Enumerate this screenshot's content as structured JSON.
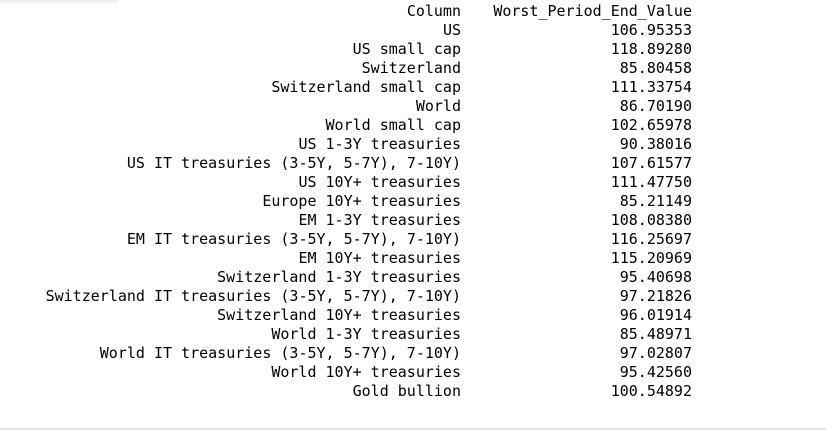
{
  "table": {
    "headers": {
      "column": "Column",
      "value": "Worst_Period_End_Value"
    },
    "rows": [
      {
        "column": "US",
        "value": "106.95353"
      },
      {
        "column": "US small cap",
        "value": "118.89280"
      },
      {
        "column": "Switzerland",
        "value": "85.80458"
      },
      {
        "column": "Switzerland small cap",
        "value": "111.33754"
      },
      {
        "column": "World",
        "value": "86.70190"
      },
      {
        "column": "World small cap",
        "value": "102.65978"
      },
      {
        "column": "US 1-3Y treasuries",
        "value": "90.38016"
      },
      {
        "column": "US IT treasuries (3-5Y, 5-7Y), 7-10Y)",
        "value": "107.61577"
      },
      {
        "column": "US 10Y+ treasuries",
        "value": "111.47750"
      },
      {
        "column": "Europe 10Y+ treasuries",
        "value": "85.21149"
      },
      {
        "column": "EM 1-3Y treasuries",
        "value": "108.08380"
      },
      {
        "column": "EM IT treasuries (3-5Y, 5-7Y), 7-10Y)",
        "value": "116.25697"
      },
      {
        "column": "EM 10Y+ treasuries",
        "value": "115.20969"
      },
      {
        "column": "Switzerland 1-3Y treasuries",
        "value": "95.40698"
      },
      {
        "column": "Switzerland IT treasuries (3-5Y, 5-7Y), 7-10Y)",
        "value": "97.21826"
      },
      {
        "column": "Switzerland 10Y+ treasuries",
        "value": "96.01914"
      },
      {
        "column": "World 1-3Y treasuries",
        "value": "85.48971"
      },
      {
        "column": "World IT treasuries (3-5Y, 5-7Y), 7-10Y)",
        "value": "97.02807"
      },
      {
        "column": "World 10Y+ treasuries",
        "value": "95.42560"
      },
      {
        "column": "Gold bullion",
        "value": "100.54892"
      }
    ]
  }
}
